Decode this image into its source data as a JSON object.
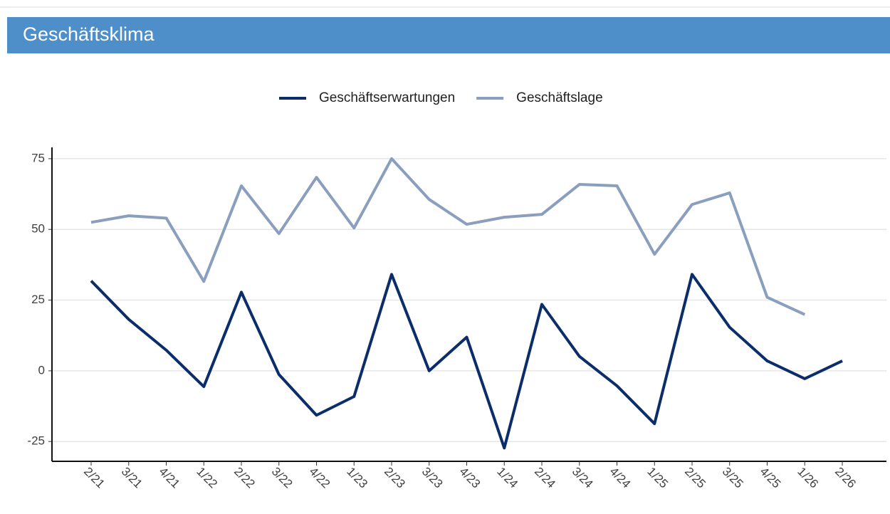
{
  "chart_data": {
    "type": "line",
    "title": "Geschäftsklima",
    "categories": [
      "2/21",
      "3/21",
      "4/21",
      "1/22",
      "2/22",
      "3/22",
      "4/22",
      "1/23",
      "2/23",
      "3/23",
      "4/23",
      "1/24",
      "2/24",
      "3/24",
      "4/24",
      "1/25",
      "2/25",
      "3/25",
      "4/25",
      "1/26",
      "2/26"
    ],
    "series": [
      {
        "name": "Geschäftserwartungen",
        "color": "#0b2e6b",
        "values": [
          31.8,
          18.2,
          7.3,
          -5.6,
          27.8,
          -1.3,
          -15.7,
          -9.1,
          34.1,
          0,
          11.9,
          -27.3,
          23.5,
          5.1,
          -5.3,
          -18.7,
          34.1,
          15.4,
          3.5,
          -2.8,
          3.5
        ]
      },
      {
        "name": "Geschäftslage",
        "color": "#8a9ebe",
        "values": [
          52.5,
          54.8,
          54.0,
          31.6,
          65.4,
          48.5,
          68.4,
          50.5,
          75,
          60.6,
          51.8,
          54.3,
          55.3,
          65.9,
          65.4,
          41.2,
          58.8,
          62.9,
          26.0,
          19.9,
          null
        ]
      }
    ],
    "ylim": [
      -32,
      79
    ],
    "yticks": [
      -25,
      0,
      25,
      50,
      75
    ],
    "grid": true,
    "legend": "top"
  }
}
